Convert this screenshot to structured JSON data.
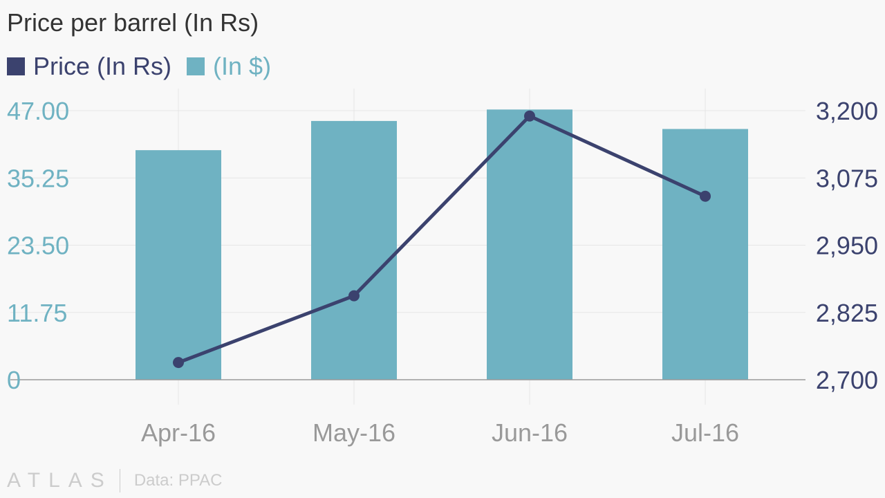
{
  "chart_data": {
    "type": "bar",
    "title": "Price per barrel (In Rs)",
    "categories": [
      "Apr-16",
      "May-16",
      "Jun-16",
      "Jul-16"
    ],
    "series": [
      {
        "name": "(In $)",
        "type": "bar",
        "axis": "left",
        "color": "#6fb2c2",
        "values": [
          40.1,
          45.2,
          47.2,
          43.8
        ]
      },
      {
        "name": "Price (In Rs)",
        "type": "line",
        "axis": "right",
        "color": "#3b426e",
        "values": [
          2732,
          2856,
          3190,
          3041
        ]
      }
    ],
    "y_left": {
      "range": [
        0,
        47
      ],
      "ticks": [
        0,
        11.75,
        23.5,
        35.25,
        47
      ],
      "tick_labels": [
        "0",
        "11.75",
        "23.50",
        "35.25",
        "47.00"
      ],
      "color": "#6fb2c2"
    },
    "y_right": {
      "range": [
        2700,
        3200
      ],
      "ticks": [
        2700,
        2825,
        2950,
        3075,
        3200
      ],
      "tick_labels": [
        "2,700",
        "2,825",
        "2,950",
        "3,075",
        "3,200"
      ],
      "color": "#3b426e"
    },
    "grid": true,
    "legend_position": "top-left"
  },
  "footer": {
    "logo": "ATLAS",
    "source": "Data: PPAC"
  }
}
